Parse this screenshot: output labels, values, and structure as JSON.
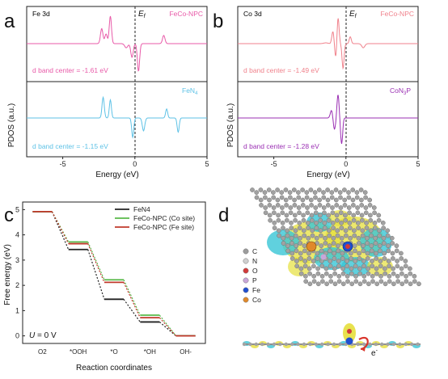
{
  "panels": [
    {
      "id": "a",
      "letter": "a",
      "element": "Fe 3d",
      "fermi_label": "Ef",
      "xlabel": "Energy (eV)",
      "ylabel": "PDOS (a.u.)",
      "xlim": [
        -7.5,
        5
      ],
      "xticks": [
        "-5",
        "0",
        "5"
      ],
      "xtick_values": [
        -5,
        0,
        5
      ],
      "top": {
        "label": "FeCo-NPC",
        "color": "#e85aa8",
        "dband": "d band center = -1.61 eV"
      },
      "bottom": {
        "label": "FeN4",
        "color": "#5ec2e6",
        "dband": "d band center = -1.15 eV"
      }
    },
    {
      "id": "b",
      "letter": "b",
      "element": "Co 3d",
      "fermi_label": "Ef",
      "xlabel": "Energy (eV)",
      "ylabel": "PDOS (a.u.)",
      "xlim": [
        -7.5,
        5
      ],
      "xticks": [
        "-5",
        "0",
        "5"
      ],
      "xtick_values": [
        -5,
        0,
        5
      ],
      "top": {
        "label": "FeCo-NPC",
        "color": "#f0828c",
        "dband": "d band center = -1.49 eV"
      },
      "bottom": {
        "label": "CoN3P",
        "color": "#9a2fb3",
        "dband": "d band center = -1.28 eV"
      }
    }
  ],
  "chart_data": {
    "type": "line",
    "title": "",
    "xlabel": "Reaction coordinates",
    "ylabel": "Free energy (eV)",
    "categories": [
      "O2",
      "*OOH",
      "*O",
      "*OH",
      "OH-"
    ],
    "ylim": [
      0,
      5
    ],
    "yticks": [
      0,
      1,
      2,
      3,
      4,
      5
    ],
    "annotation": "U = 0 V",
    "series": [
      {
        "name": "FeN4",
        "color": "#222222",
        "values": [
          4.92,
          3.42,
          1.45,
          0.55,
          0.0
        ]
      },
      {
        "name": "FeCo-NPC (Co site)",
        "color": "#58b94a",
        "values": [
          4.92,
          3.72,
          2.22,
          0.82,
          0.0
        ]
      },
      {
        "name": "FeCo-NPC (Fe site)",
        "color": "#c0392b",
        "values": [
          4.92,
          3.65,
          2.12,
          0.72,
          0.0
        ]
      }
    ]
  },
  "panel_c_letter": "c",
  "panel_d": {
    "letter": "d",
    "electron_label": "e-",
    "legend": [
      {
        "symbol": "C",
        "color": "#9c9c9c"
      },
      {
        "symbol": "N",
        "color": "#cfcfcf"
      },
      {
        "symbol": "O",
        "color": "#d23a3a"
      },
      {
        "symbol": "P",
        "color": "#c9a6d8"
      },
      {
        "symbol": "Fe",
        "color": "#1f4fd1"
      },
      {
        "symbol": "Co",
        "color": "#e0892a"
      }
    ],
    "colors": {
      "accumulation": "#e6df3c",
      "depletion": "#38c6d6",
      "arrow": "#d9342b"
    }
  }
}
